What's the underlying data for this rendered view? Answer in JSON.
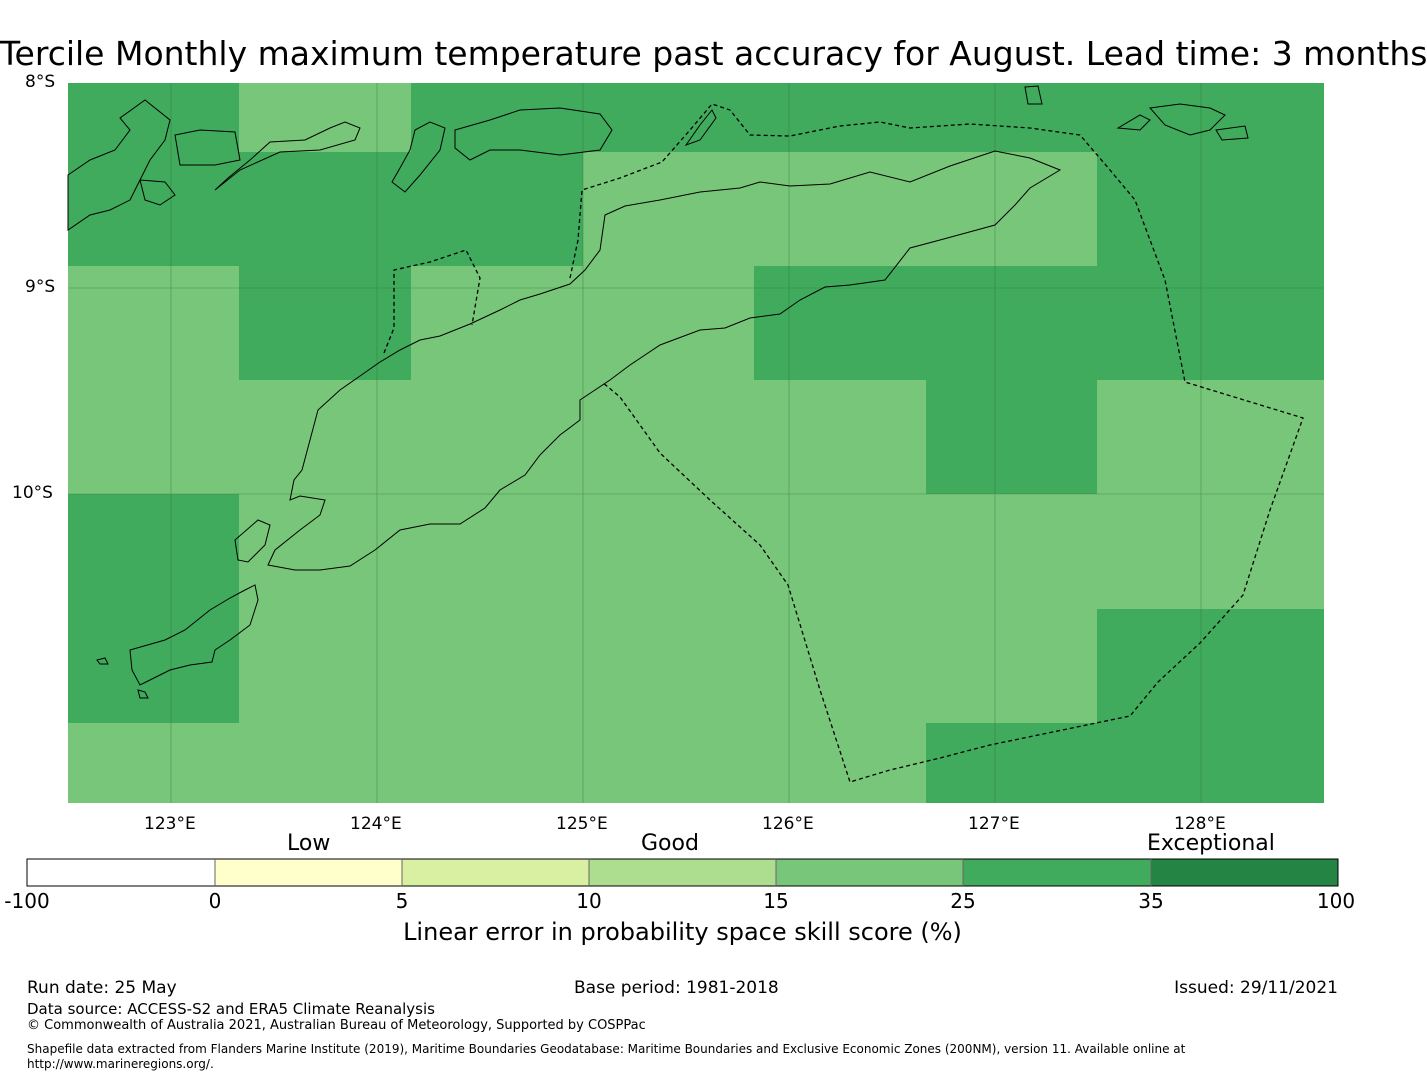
{
  "title": "Tercile Monthly maximum temperature past accuracy for August. Lead time: 3 months",
  "map": {
    "lat_labels": [
      "8°S",
      "9°S",
      "10°S"
    ],
    "lon_labels": [
      "123°E",
      "124°E",
      "125°E",
      "126°E",
      "127°E",
      "128°E"
    ],
    "colors": {
      "good_15_25": "#78c679",
      "good_25_35": "#41ab5d",
      "land": "none",
      "boundary": "#000000"
    }
  },
  "legend": {
    "categories": [
      "Low",
      "Good",
      "Exceptional"
    ],
    "ticks": [
      "-100",
      "0",
      "5",
      "10",
      "15",
      "25",
      "35",
      "100"
    ],
    "colors": [
      "#ffffff",
      "#ffffcc",
      "#d9f0a3",
      "#addd8e",
      "#78c679",
      "#41ab5d",
      "#238443"
    ],
    "axis_label": "Linear error in probability space skill score (%)"
  },
  "footer": {
    "run_date": "Run date: 25 May",
    "base_period": "Base period: 1981-2018",
    "issued": "Issued: 29/11/2021",
    "data_source": "Data source: ACCESS-S2 and ERA5 Climate Reanalysis",
    "copyright": "© Commonwealth of Australia 2021, Australian Bureau of Meteorology, Supported by COSPPac",
    "shapefile_line1": "Shapefile data extracted from Flanders Marine Institute (2019), Maritime Boundaries Geodatabase: Maritime Boundaries and Exclusive Economic Zones (200NM), version 11. Available online at",
    "shapefile_line2": "http://www.marineregions.org/."
  }
}
